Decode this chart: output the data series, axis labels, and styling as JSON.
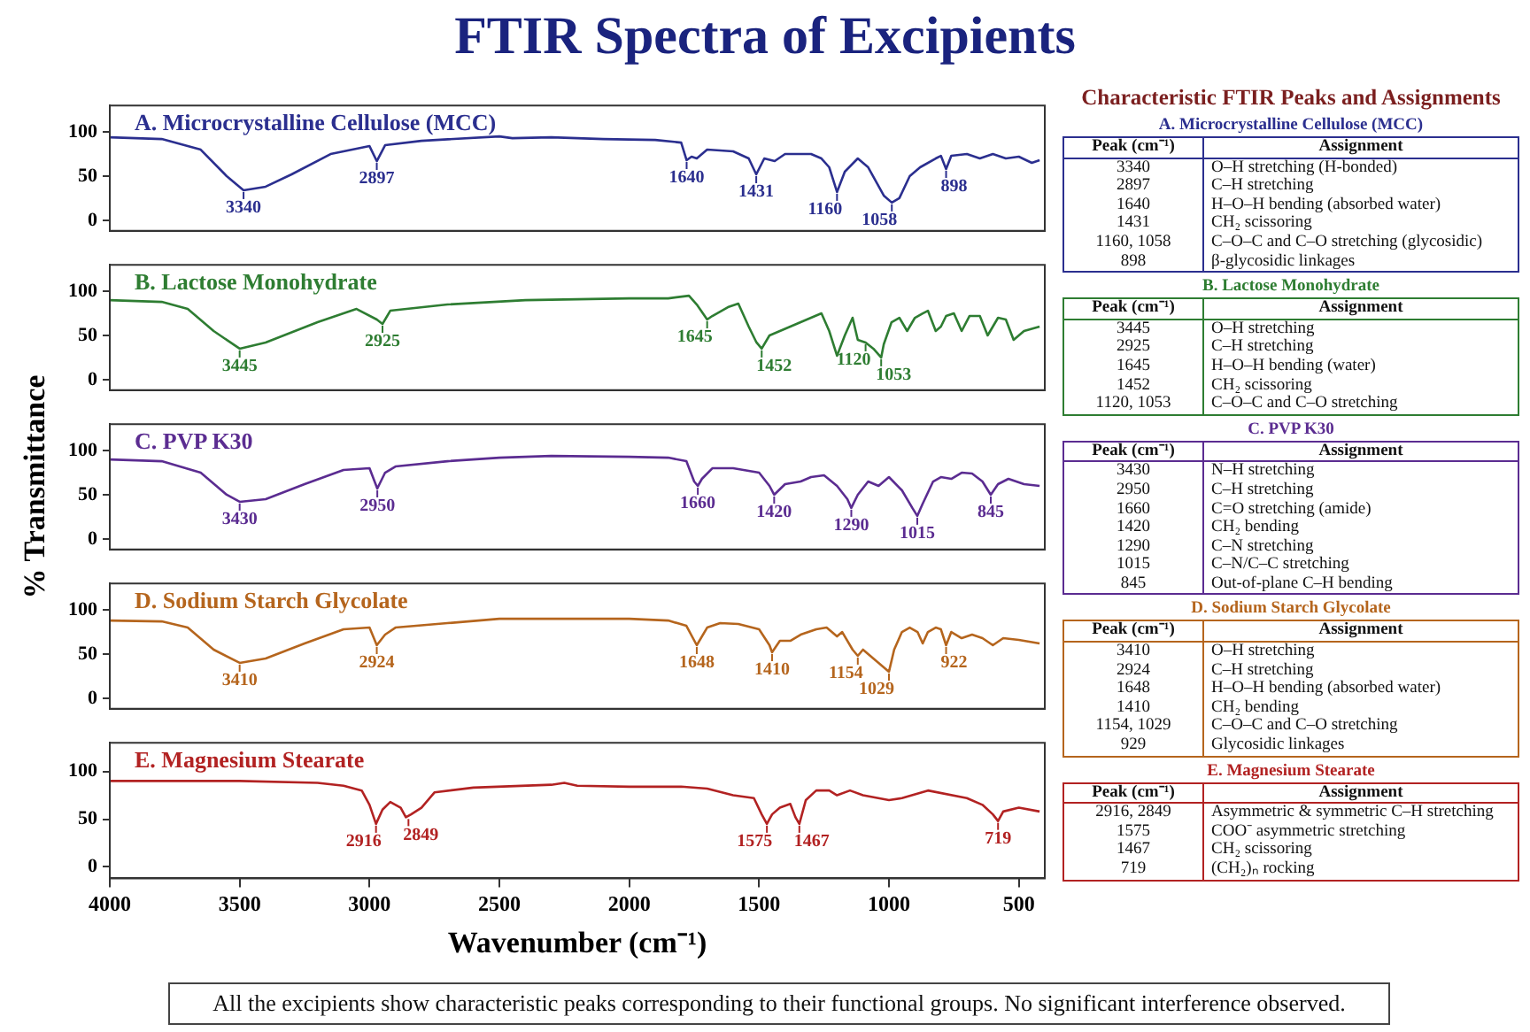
{
  "chart_data": [
    {
      "type": "other",
      "title": "FTIR Spectra of Excipients",
      "annotations": [
        "All the excipients show characteristic peaks corresponding to their functional groups. No significant interference observed."
      ]
    },
    {
      "type": "line",
      "title": "A. Microcrystalline Cellulose (MCC)",
      "xlim": [
        4000,
        400
      ],
      "xticks": [
        4000,
        3500,
        3000,
        2500,
        2000,
        1500,
        1000,
        500
      ],
      "ylim": [
        -12,
        130
      ],
      "yticks": [
        0,
        50,
        100
      ],
      "tick_labels": "y",
      "grid": false,
      "x": [
        4000,
        3800,
        3650,
        3550,
        3485,
        3400,
        3300,
        3150,
        3000,
        2972,
        2940,
        2800,
        2500,
        2450,
        2300,
        2100,
        1900,
        1800,
        1779,
        1760,
        1740,
        1700,
        1600,
        1540,
        1511,
        1480,
        1440,
        1400,
        1300,
        1260,
        1230,
        1200,
        1170,
        1120,
        1080,
        1020,
        989,
        960,
        920,
        880,
        820,
        800,
        780,
        760,
        700,
        650,
        600,
        550,
        500,
        450,
        420
      ],
      "series": [
        {
          "color": "#2b2f8f",
          "values": [
            94,
            92,
            80,
            50,
            34,
            38,
            52,
            75,
            84,
            67,
            85,
            90,
            95,
            93,
            94,
            92,
            91,
            88,
            68,
            72,
            70,
            80,
            78,
            70,
            52,
            70,
            67,
            75,
            75,
            70,
            60,
            32,
            55,
            70,
            60,
            28,
            20,
            25,
            50,
            60,
            70,
            73,
            58,
            73,
            75,
            70,
            75,
            70,
            72,
            65,
            68
          ]
        }
      ],
      "annotations": [
        {
          "text": "3340",
          "x": 3485,
          "y": 34
        },
        {
          "text": "2897",
          "x": 2972,
          "y": 67
        },
        {
          "text": "1640",
          "x": 1779,
          "y": 68
        },
        {
          "text": "1431",
          "x": 1511,
          "y": 52
        },
        {
          "text": "1160",
          "x": 1200,
          "y": 32
        },
        {
          "text": "1058",
          "x": 989,
          "y": 20
        },
        {
          "text": "898",
          "x": 780,
          "y": 58
        }
      ]
    },
    {
      "type": "line",
      "title": "B. Lactose Monohydrate",
      "xlim": [
        4000,
        400
      ],
      "xticks": [
        4000,
        3500,
        3000,
        2500,
        2000,
        1500,
        1000,
        500
      ],
      "ylim": [
        -12,
        130
      ],
      "yticks": [
        0,
        50,
        100
      ],
      "tick_labels": "y",
      "grid": false,
      "x": [
        4000,
        3800,
        3700,
        3600,
        3500,
        3400,
        3200,
        3050,
        2972,
        2950,
        2920,
        2700,
        2400,
        2000,
        1850,
        1770,
        1740,
        1700,
        1680,
        1620,
        1580,
        1540,
        1510,
        1490,
        1460,
        1420,
        1380,
        1340,
        1300,
        1260,
        1230,
        1200,
        1170,
        1140,
        1120,
        1090,
        1060,
        1030,
        1020,
        990,
        960,
        930,
        900,
        870,
        850,
        820,
        800,
        780,
        750,
        720,
        690,
        650,
        620,
        580,
        550,
        520,
        480,
        420
      ],
      "series": [
        {
          "color": "#2e7d32",
          "values": [
            90,
            88,
            80,
            55,
            35,
            42,
            65,
            80,
            68,
            63,
            78,
            85,
            90,
            92,
            92,
            95,
            85,
            68,
            72,
            82,
            86,
            60,
            42,
            35,
            50,
            55,
            60,
            65,
            70,
            75,
            55,
            27,
            50,
            70,
            45,
            42,
            35,
            25,
            40,
            65,
            70,
            55,
            70,
            75,
            78,
            55,
            60,
            72,
            75,
            55,
            72,
            72,
            50,
            70,
            68,
            45,
            55,
            60
          ]
        }
      ],
      "annotations": [
        {
          "text": "3445",
          "x": 3500,
          "y": 35
        },
        {
          "text": "2925",
          "x": 2950,
          "y": 63
        },
        {
          "text": "1645",
          "x": 1700,
          "y": 68
        },
        {
          "text": "1452",
          "x": 1490,
          "y": 35
        },
        {
          "text": "1120",
          "x": 1090,
          "y": 42
        },
        {
          "text": "1053",
          "x": 1030,
          "y": 25
        }
      ]
    },
    {
      "type": "line",
      "title": "C. PVP K30",
      "ylabel": "% Transmittance",
      "xlim": [
        4000,
        400
      ],
      "xticks": [
        4000,
        3500,
        3000,
        2500,
        2000,
        1500,
        1000,
        500
      ],
      "ylim": [
        -12,
        130
      ],
      "yticks": [
        0,
        50,
        100
      ],
      "tick_labels": "y",
      "grid": false,
      "x": [
        4000,
        3800,
        3650,
        3550,
        3500,
        3400,
        3250,
        3100,
        3000,
        2970,
        2940,
        2900,
        2700,
        2500,
        2300,
        2000,
        1850,
        1780,
        1750,
        1736,
        1720,
        1680,
        1600,
        1500,
        1460,
        1442,
        1400,
        1340,
        1300,
        1250,
        1200,
        1160,
        1145,
        1120,
        1080,
        1040,
        1000,
        950,
        910,
        891,
        870,
        830,
        800,
        760,
        720,
        680,
        640,
        608,
        580,
        540,
        480,
        420
      ],
      "series": [
        {
          "color": "#5b2c91",
          "values": [
            90,
            88,
            75,
            50,
            42,
            45,
            62,
            78,
            80,
            57,
            75,
            82,
            88,
            92,
            94,
            93,
            92,
            88,
            65,
            60,
            68,
            80,
            80,
            75,
            60,
            50,
            62,
            65,
            70,
            72,
            60,
            45,
            35,
            50,
            65,
            60,
            70,
            55,
            35,
            26,
            40,
            65,
            70,
            68,
            75,
            74,
            65,
            50,
            62,
            68,
            62,
            60
          ]
        }
      ],
      "annotations": [
        {
          "text": "3430",
          "x": 3500,
          "y": 42
        },
        {
          "text": "2950",
          "x": 2970,
          "y": 57
        },
        {
          "text": "1660",
          "x": 1736,
          "y": 60
        },
        {
          "text": "1420",
          "x": 1442,
          "y": 50
        },
        {
          "text": "1290",
          "x": 1145,
          "y": 35
        },
        {
          "text": "1015",
          "x": 891,
          "y": 26
        },
        {
          "text": "845",
          "x": 608,
          "y": 50
        }
      ]
    },
    {
      "type": "line",
      "title": "D. Sodium Starch Glycolate",
      "xlim": [
        4000,
        400
      ],
      "xticks": [
        4000,
        3500,
        3000,
        2500,
        2000,
        1500,
        1000,
        500
      ],
      "ylim": [
        -12,
        130
      ],
      "yticks": [
        0,
        50,
        100
      ],
      "tick_labels": "y",
      "grid": false,
      "x": [
        4000,
        3800,
        3700,
        3600,
        3500,
        3400,
        3250,
        3100,
        3000,
        2972,
        2940,
        2900,
        2700,
        2500,
        2300,
        2000,
        1850,
        1780,
        1740,
        1700,
        1650,
        1580,
        1500,
        1460,
        1450,
        1420,
        1380,
        1340,
        1280,
        1240,
        1200,
        1180,
        1140,
        1120,
        1100,
        1060,
        1020,
        1000,
        980,
        950,
        920,
        890,
        870,
        850,
        820,
        800,
        780,
        760,
        720,
        680,
        640,
        600,
        560,
        500,
        420
      ],
      "series": [
        {
          "color": "#b5651d",
          "values": [
            88,
            87,
            80,
            55,
            40,
            45,
            62,
            78,
            80,
            60,
            72,
            80,
            85,
            90,
            90,
            90,
            88,
            82,
            60,
            80,
            85,
            84,
            78,
            60,
            52,
            65,
            65,
            72,
            78,
            80,
            70,
            75,
            55,
            48,
            55,
            45,
            35,
            30,
            55,
            75,
            80,
            75,
            62,
            75,
            80,
            78,
            60,
            75,
            68,
            72,
            68,
            60,
            68,
            66,
            62
          ]
        }
      ],
      "annotations": [
        {
          "text": "3410",
          "x": 3500,
          "y": 40
        },
        {
          "text": "2924",
          "x": 2972,
          "y": 60
        },
        {
          "text": "1648",
          "x": 1740,
          "y": 60
        },
        {
          "text": "1410",
          "x": 1450,
          "y": 52
        },
        {
          "text": "1154",
          "x": 1120,
          "y": 48
        },
        {
          "text": "1029",
          "x": 1000,
          "y": 30
        },
        {
          "text": "922",
          "x": 780,
          "y": 60
        }
      ]
    },
    {
      "type": "line",
      "title": "E. Magnesium Stearate",
      "xlabel": "Wavenumber (cm⁻¹)",
      "xlim": [
        4000,
        400
      ],
      "xticks": [
        4000,
        3500,
        3000,
        2500,
        2000,
        1500,
        1000,
        500
      ],
      "ylim": [
        -12,
        130
      ],
      "yticks": [
        0,
        50,
        100
      ],
      "grid": false,
      "x": [
        4000,
        3500,
        3200,
        3100,
        3030,
        3000,
        2975,
        2950,
        2920,
        2880,
        2860,
        2840,
        2800,
        2750,
        2600,
        2300,
        2250,
        2200,
        2000,
        1800,
        1700,
        1600,
        1520,
        1490,
        1470,
        1450,
        1420,
        1380,
        1360,
        1345,
        1320,
        1280,
        1230,
        1200,
        1150,
        1100,
        1000,
        950,
        850,
        700,
        640,
        600,
        580,
        560,
        500,
        420
      ],
      "series": [
        {
          "color": "#b22222",
          "values": [
            90,
            90,
            88,
            85,
            80,
            65,
            45,
            60,
            68,
            62,
            52,
            55,
            62,
            78,
            83,
            86,
            88,
            85,
            84,
            84,
            82,
            75,
            72,
            55,
            45,
            55,
            62,
            66,
            52,
            45,
            70,
            80,
            80,
            75,
            80,
            75,
            70,
            72,
            80,
            72,
            65,
            55,
            48,
            58,
            62,
            58
          ]
        }
      ],
      "annotations": [
        {
          "text": "2916",
          "x": 2975,
          "y": 45
        },
        {
          "text": "2849",
          "x": 2850,
          "y": 52
        },
        {
          "text": "1575",
          "x": 1470,
          "y": 45
        },
        {
          "text": "1467",
          "x": 1345,
          "y": 45
        },
        {
          "text": "719",
          "x": 580,
          "y": 48
        }
      ]
    },
    {
      "type": "other",
      "title": "Characteristic FTIR Peaks and Assignments"
    },
    {
      "type": "other",
      "title": "A. Microcrystalline Cellulose (MCC)",
      "color": "#2b2f8f",
      "xlabel": "Peak (cm⁻¹)",
      "ylabel": "Assignment",
      "categories": [
        "3340",
        "2897",
        "1640",
        "1431",
        "1160, 1058",
        "898"
      ],
      "annotations": [
        "O–H stretching (H-bonded)",
        "C–H stretching",
        "H–O–H bending (absorbed water)",
        "CH₂ scissoring",
        "C–O–C and C–O stretching (glycosidic)",
        "β-glycosidic linkages"
      ]
    },
    {
      "type": "other",
      "title": "B. Lactose Monohydrate",
      "color": "#2e7d32",
      "xlabel": "Peak (cm⁻¹)",
      "ylabel": "Assignment",
      "categories": [
        "3445",
        "2925",
        "1645",
        "1452",
        "1120, 1053"
      ],
      "annotations": [
        "O–H stretching",
        "C–H stretching",
        "H–O–H bending (water)",
        "CH₂ scissoring",
        "C–O–C and C–O stretching"
      ]
    },
    {
      "type": "other",
      "title": "C. PVP K30",
      "color": "#5b2c91",
      "xlabel": "Peak (cm⁻¹)",
      "ylabel": "Assignment",
      "categories": [
        "3430",
        "2950",
        "1660",
        "1420",
        "1290",
        "1015",
        "845"
      ],
      "annotations": [
        "N–H stretching",
        "C–H stretching",
        "C=O stretching (amide)",
        "CH₂ bending",
        "C–N stretching",
        "C–N/C–C stretching",
        "Out-of-plane C–H bending"
      ]
    },
    {
      "type": "other",
      "title": "D. Sodium Starch Glycolate",
      "color": "#b5651d",
      "xlabel": "Peak (cm⁻¹)",
      "ylabel": "Assignment",
      "categories": [
        "3410",
        "2924",
        "1648",
        "1410",
        "1154, 1029",
        "929"
      ],
      "annotations": [
        "O–H stretching",
        "C–H stretching",
        "H–O–H bending (absorbed water)",
        "CH₂ bending",
        "C–O–C and C–O stretching",
        "Glycosidic linkages"
      ]
    },
    {
      "type": "other",
      "title": "E. Magnesium Stearate",
      "color": "#b22222",
      "xlabel": "Peak (cm⁻¹)",
      "ylabel": "Assignment",
      "categories": [
        "2916, 2849",
        "1575",
        "1467",
        "719"
      ],
      "annotations": [
        "Asymmetric & symmetric C–H stretching",
        "COO⁻ asymmetric stretching",
        "CH₂ scissoring",
        "(CH₂)ₙ rocking"
      ]
    }
  ]
}
